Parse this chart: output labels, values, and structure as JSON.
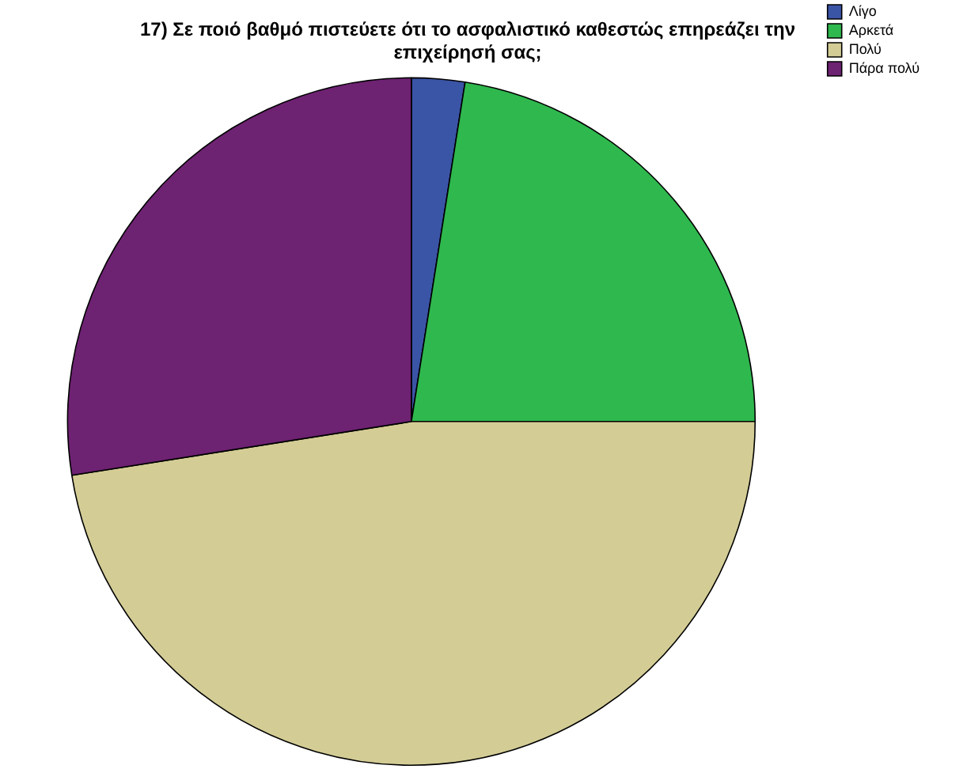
{
  "chart_data": {
    "type": "pie",
    "title": "17) Σε ποιό βαθμό πιστεύετε ότι το ασφαλιστικό καθεστώς επηρεάζει την επιχείρησή σας;",
    "categories": [
      "Λίγο",
      "Αρκετά",
      "Πολύ",
      "Πάρα πολύ"
    ],
    "values": [
      2.5,
      22.5,
      47.5,
      27.5
    ],
    "colors": [
      "#3a54a6",
      "#2fb84e",
      "#d3cc95",
      "#6e2272"
    ],
    "legend": "top right"
  }
}
